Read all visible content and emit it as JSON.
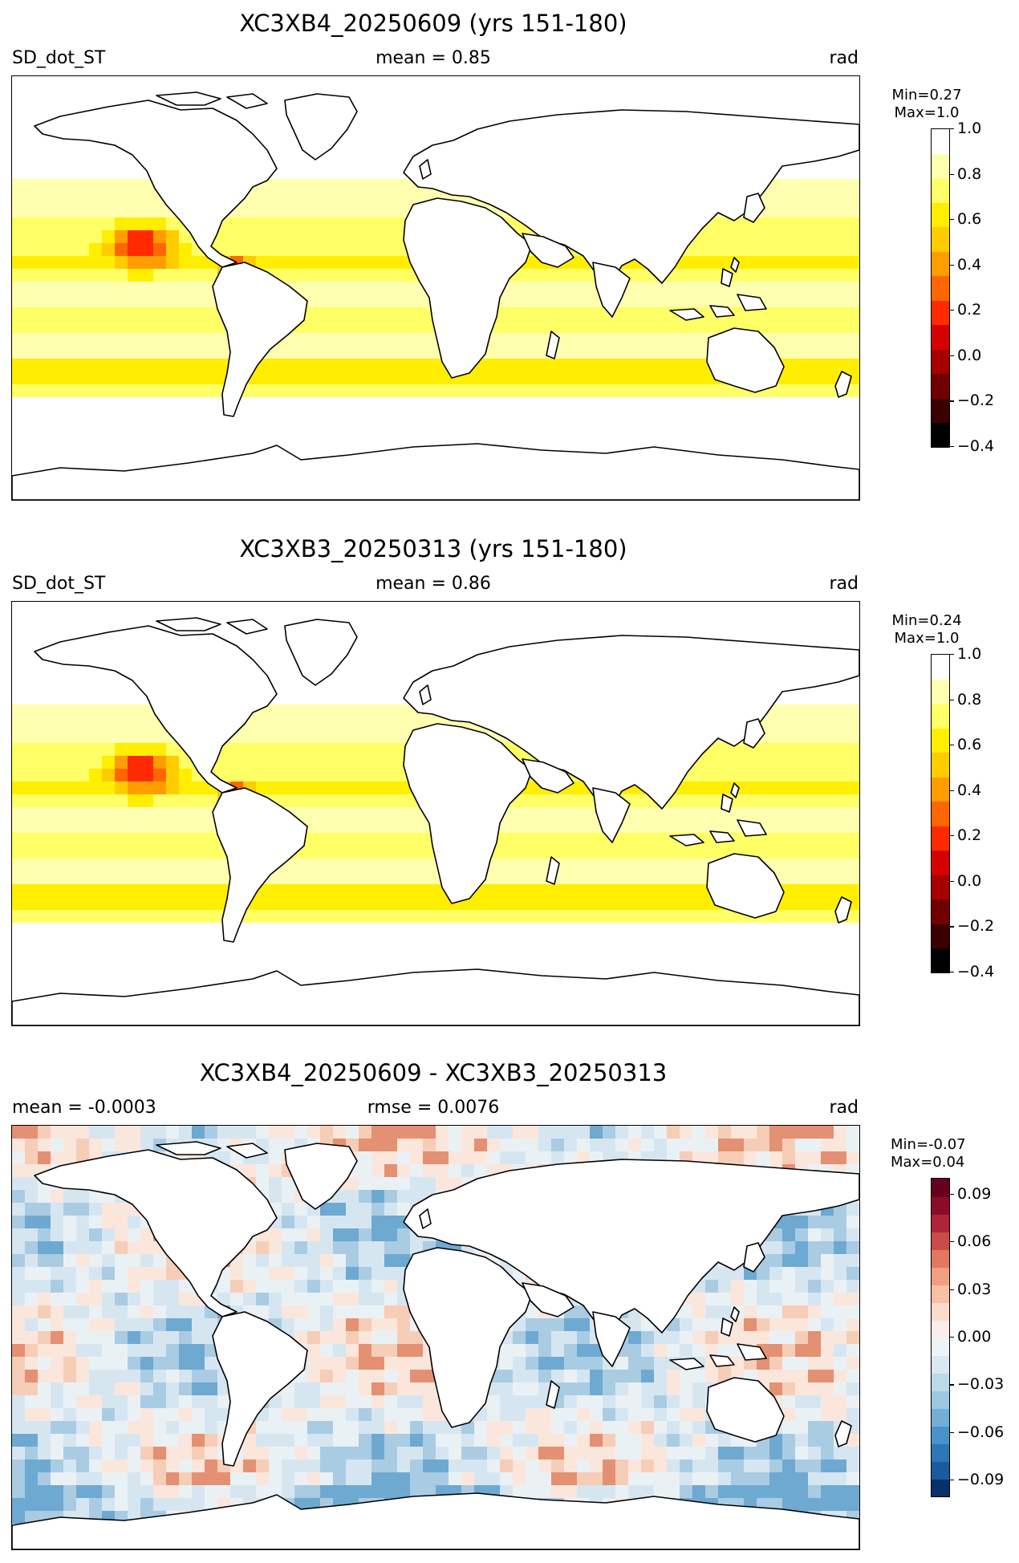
{
  "panels": [
    {
      "title": "XC3XB4_20250609 (yrs 151-180)",
      "left_label": "SD_dot_ST",
      "center_label": "mean = 0.85",
      "right_label": "rad",
      "min_text": "Min=0.27",
      "max_text": "Max=1.0"
    },
    {
      "title": "XC3XB3_20250313 (yrs 151-180)",
      "left_label": "SD_dot_ST",
      "center_label": "mean = 0.86",
      "right_label": "rad",
      "min_text": "Min=0.24",
      "max_text": "Max=1.0"
    },
    {
      "title": "XC3XB4_20250609 - XC3XB3_20250313",
      "left_label": "mean = -0.0003",
      "center_label": "rmse = 0.0076",
      "right_label": "rad",
      "min_text": "Min=-0.07",
      "max_text": "Max=0.04"
    }
  ],
  "chart_data": [
    {
      "type": "heatmap",
      "title": "XC3XB4_20250609 (yrs 151-180)",
      "variable": "SD_dot_ST",
      "units": "rad",
      "mean": 0.85,
      "min": 0.27,
      "max": 1.0,
      "colorbar": {
        "range": [
          -0.4,
          1.0
        ],
        "ticks": [
          "1.0",
          "0.8",
          "0.6",
          "0.4",
          "0.2",
          "0.0",
          "−0.2",
          "−0.4"
        ],
        "colors": [
          "#000000",
          "#3a0000",
          "#700000",
          "#a60000",
          "#d60000",
          "#ff2a00",
          "#ff6600",
          "#ff9c00",
          "#ffcc00",
          "#ffee00",
          "#ffff66",
          "#ffffb0",
          "#ffffff"
        ]
      },
      "map_colors": [
        "#ffffff",
        "#ffffb0",
        "#ffff66",
        "#ffee00",
        "#ffcc00",
        "#ff9c00",
        "#ff6600",
        "#ff2a00"
      ]
    },
    {
      "type": "heatmap",
      "title": "XC3XB3_20250313 (yrs 151-180)",
      "variable": "SD_dot_ST",
      "units": "rad",
      "mean": 0.86,
      "min": 0.24,
      "max": 1.0,
      "colorbar": {
        "range": [
          -0.4,
          1.0
        ],
        "ticks": [
          "1.0",
          "0.8",
          "0.6",
          "0.4",
          "0.2",
          "0.0",
          "−0.2",
          "−0.4"
        ],
        "colors": [
          "#000000",
          "#3a0000",
          "#700000",
          "#a60000",
          "#d60000",
          "#ff2a00",
          "#ff6600",
          "#ff9c00",
          "#ffcc00",
          "#ffee00",
          "#ffff66",
          "#ffffb0",
          "#ffffff"
        ]
      },
      "map_colors": [
        "#ffffff",
        "#ffffb0",
        "#ffff66",
        "#ffee00",
        "#ffcc00",
        "#ff9c00",
        "#ff6600",
        "#ff2a00"
      ]
    },
    {
      "type": "heatmap",
      "title": "XC3XB4_20250609 - XC3XB3_20250313",
      "units": "rad",
      "mean": -0.0003,
      "rmse": 0.0076,
      "min": -0.07,
      "max": 0.04,
      "colorbar": {
        "range": [
          -0.1,
          0.1
        ],
        "ticks": [
          "0.09",
          "0.06",
          "0.03",
          "0.00",
          "−0.03",
          "−0.06",
          "−0.09"
        ],
        "colors": [
          "#08306b",
          "#1c5a9e",
          "#2b77b8",
          "#4a93c8",
          "#72aed6",
          "#9ac8e0",
          "#bcd9ea",
          "#d9e8f1",
          "#eef3f6",
          "#f9eee8",
          "#fbdccb",
          "#f8c0a4",
          "#f19f7f",
          "#e27762",
          "#cb4b48",
          "#b0243a",
          "#8c0b28",
          "#67001f"
        ]
      },
      "map_colors": [
        "#eaf1f5",
        "#fbe6dc",
        "#d6e6f1",
        "#f6cdb7",
        "#a9cce3",
        "#6ea9d2",
        "#f0a080",
        "#e49072"
      ]
    }
  ]
}
